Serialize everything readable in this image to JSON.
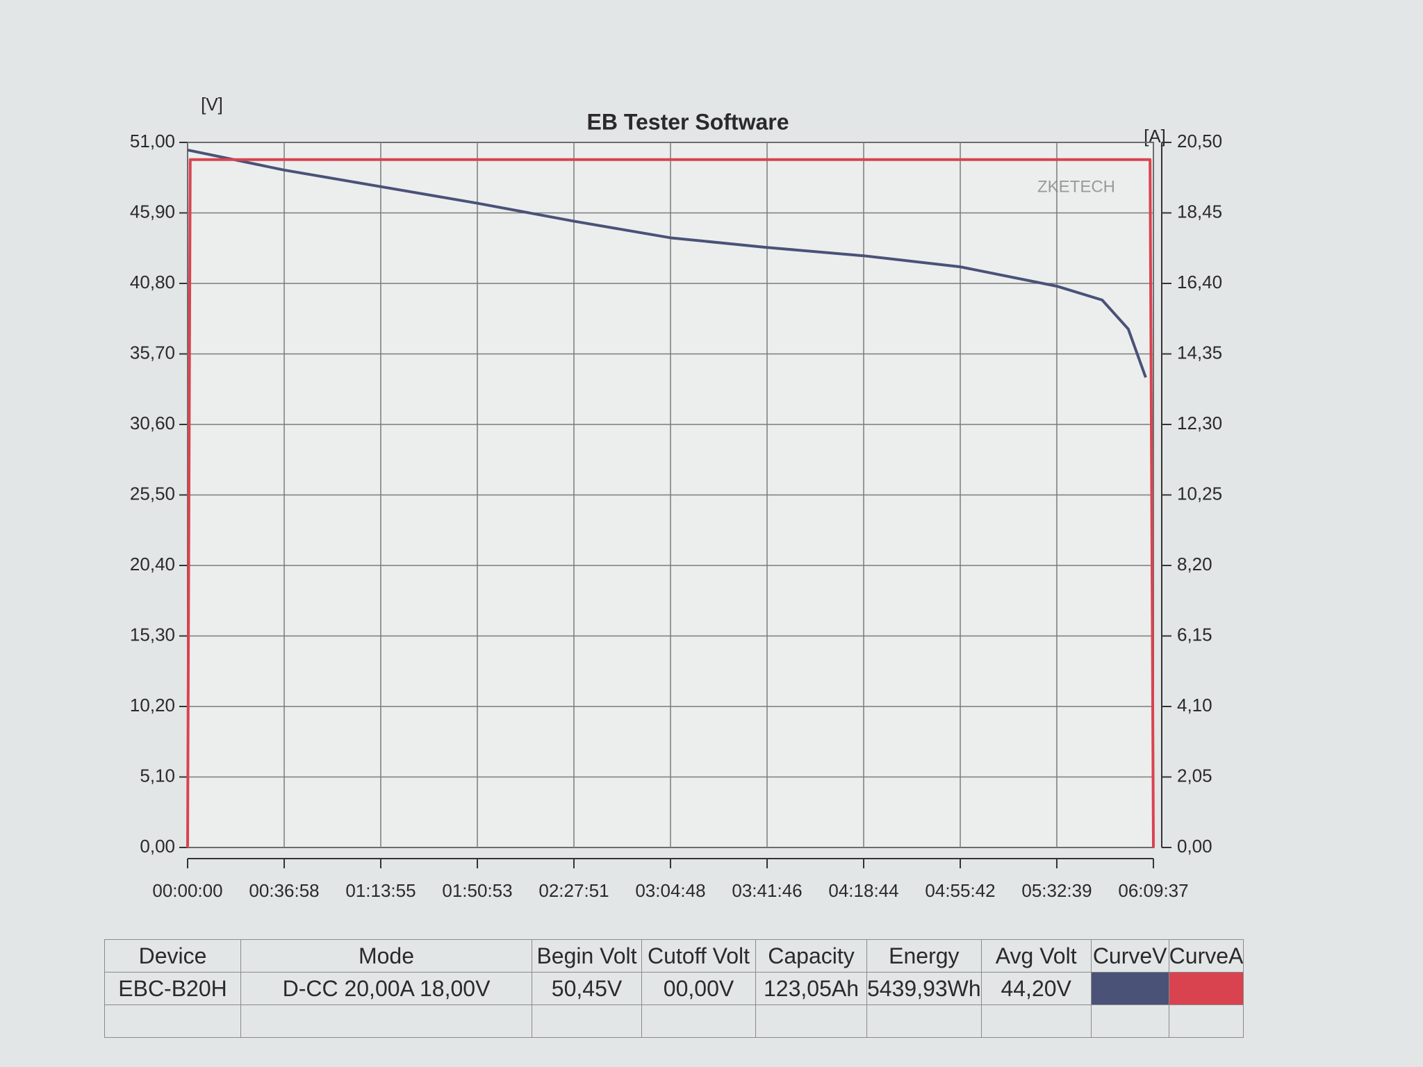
{
  "chart_data": {
    "type": "line",
    "title": "EB Tester Software",
    "ylabel": "[V]",
    "y2label": "[A]",
    "watermark": "ZKETECH",
    "xlim": [
      0,
      22177
    ],
    "xticks": [
      {
        "value": 0,
        "label": "00:00:00"
      },
      {
        "value": 2218,
        "label": "00:36:58"
      },
      {
        "value": 4435,
        "label": "01:13:55"
      },
      {
        "value": 6653,
        "label": "01:50:53"
      },
      {
        "value": 8871,
        "label": "02:27:51"
      },
      {
        "value": 11088,
        "label": "03:04:48"
      },
      {
        "value": 13306,
        "label": "03:41:46"
      },
      {
        "value": 15524,
        "label": "04:18:44"
      },
      {
        "value": 17742,
        "label": "04:55:42"
      },
      {
        "value": 19959,
        "label": "05:32:39"
      },
      {
        "value": 22177,
        "label": "06:09:37"
      }
    ],
    "ylim": [
      0,
      51
    ],
    "yticks": [
      {
        "value": 0,
        "label": "0,00"
      },
      {
        "value": 5.1,
        "label": "5,10"
      },
      {
        "value": 10.2,
        "label": "10,20"
      },
      {
        "value": 15.3,
        "label": "15,30"
      },
      {
        "value": 20.4,
        "label": "20,40"
      },
      {
        "value": 25.5,
        "label": "25,50"
      },
      {
        "value": 30.6,
        "label": "30,60"
      },
      {
        "value": 35.7,
        "label": "35,70"
      },
      {
        "value": 40.8,
        "label": "40,80"
      },
      {
        "value": 45.9,
        "label": "45,90"
      },
      {
        "value": 51,
        "label": "51,00"
      }
    ],
    "y2lim": [
      0,
      20.5
    ],
    "y2ticks": [
      {
        "value": 0,
        "label": "0,00"
      },
      {
        "value": 2.05,
        "label": "2,05"
      },
      {
        "value": 4.1,
        "label": "4,10"
      },
      {
        "value": 6.15,
        "label": "6,15"
      },
      {
        "value": 8.2,
        "label": "8,20"
      },
      {
        "value": 10.25,
        "label": "10,25"
      },
      {
        "value": 12.3,
        "label": "12,30"
      },
      {
        "value": 14.35,
        "label": "14,35"
      },
      {
        "value": 16.4,
        "label": "16,40"
      },
      {
        "value": 18.45,
        "label": "18,45"
      },
      {
        "value": 20.5,
        "label": "20,50"
      }
    ],
    "grid": true,
    "series": [
      {
        "name": "CurveV",
        "color": "#4a5278",
        "axis": "y",
        "x": [
          0,
          2218,
          4435,
          6653,
          8871,
          11088,
          13306,
          15524,
          17742,
          19959,
          21000,
          21600,
          22000
        ],
        "values": [
          50.45,
          49.0,
          47.8,
          46.6,
          45.3,
          44.1,
          43.4,
          42.8,
          42.0,
          40.6,
          39.6,
          37.5,
          34.0
        ]
      },
      {
        "name": "CurveA",
        "color": "#d9434f",
        "axis": "y2",
        "x": [
          0,
          60,
          22100,
          22177
        ],
        "values": [
          0,
          20,
          20,
          0
        ]
      }
    ]
  },
  "table": {
    "headers": [
      "Device",
      "Mode",
      "Begin Volt",
      "Cutoff Volt",
      "Capacity",
      "Energy",
      "Avg Volt",
      "CurveV",
      "CurveA"
    ],
    "rows": [
      [
        "EBC-B20H",
        "D-CC 20,00A 18,00V",
        "50,45V",
        "00,00V",
        "123,05Ah",
        "5439,93Wh",
        "44,20V"
      ]
    ]
  }
}
